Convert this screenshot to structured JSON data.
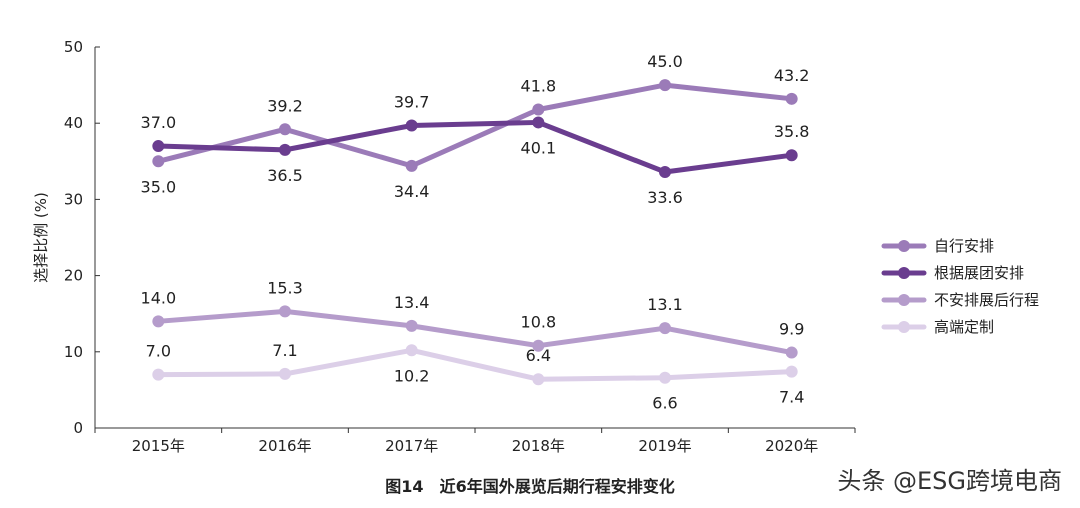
{
  "chart_data": {
    "type": "line",
    "title": "图14　近6年国外展览后期行程安排变化",
    "xlabel": "",
    "ylabel": "选择比例 (%)",
    "ylim": [
      0,
      50
    ],
    "yticks": [
      0,
      10,
      20,
      30,
      40,
      50
    ],
    "categories": [
      "2015年",
      "2016年",
      "2017年",
      "2018年",
      "2019年",
      "2020年"
    ],
    "grid": false,
    "legend_position": "right",
    "series": [
      {
        "name": "自行安排",
        "color": "#9b7bb8",
        "values": [
          35.0,
          39.2,
          34.4,
          41.8,
          45.0,
          43.2
        ],
        "labels": [
          "35.0",
          "39.2",
          "34.4",
          "41.8",
          "45.0",
          "43.2"
        ],
        "label_pos": [
          "below",
          "above",
          "below",
          "above",
          "above",
          "above"
        ]
      },
      {
        "name": "根据展团安排",
        "color": "#6a3d8f",
        "values": [
          37.0,
          36.5,
          39.7,
          40.1,
          33.6,
          35.8
        ],
        "labels": [
          "37.0",
          "36.5",
          "39.7",
          "40.1",
          "33.6",
          "35.8"
        ],
        "label_pos": [
          "above",
          "below",
          "above",
          "below",
          "below",
          "above"
        ]
      },
      {
        "name": "不安排展后行程",
        "color": "#b59ccb",
        "values": [
          14.0,
          15.3,
          13.4,
          10.8,
          13.1,
          9.9
        ],
        "labels": [
          "14.0",
          "15.3",
          "13.4",
          "10.8",
          "13.1",
          "9.9"
        ],
        "label_pos": [
          "above",
          "above",
          "above",
          "above",
          "above",
          "above"
        ]
      },
      {
        "name": "高端定制",
        "color": "#dccfe8",
        "values": [
          7.0,
          7.1,
          10.2,
          6.4,
          6.6,
          7.4
        ],
        "labels": [
          "7.0",
          "7.1",
          "10.2",
          "6.4",
          "6.6",
          "7.4"
        ],
        "label_pos": [
          "above",
          "above",
          "below",
          "above",
          "below",
          "below"
        ]
      }
    ]
  },
  "watermark": "头条 @ESG跨境电商"
}
